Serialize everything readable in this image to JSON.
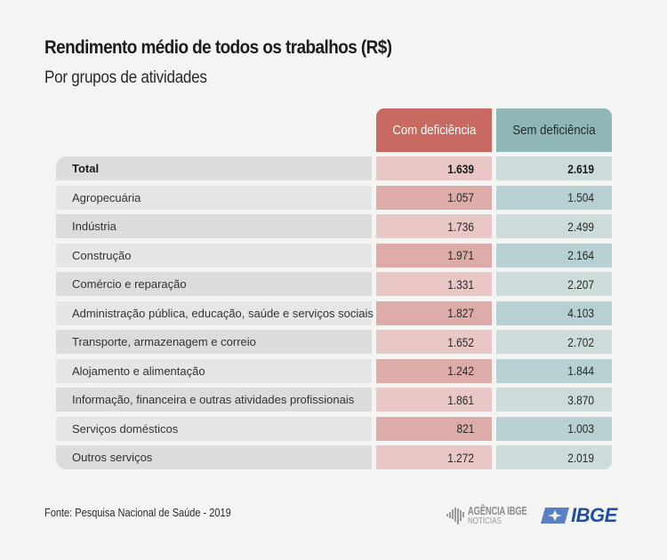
{
  "header": {
    "title": "Rendimento médio de todos os trabalhos (R$)",
    "subtitle": "Por grupos de atividades"
  },
  "table": {
    "columns": [
      "Com deficiência",
      "Sem deficiência"
    ],
    "rows": [
      {
        "label": "Total",
        "com": "1.639",
        "sem": "2.619"
      },
      {
        "label": "Agropecuária",
        "com": "1.057",
        "sem": "1.504"
      },
      {
        "label": "Indústria",
        "com": "1.736",
        "sem": "2.499"
      },
      {
        "label": "Construção",
        "com": "1.971",
        "sem": "2.164"
      },
      {
        "label": "Comércio e reparação",
        "com": "1.331",
        "sem": "2.207"
      },
      {
        "label": "Administração pública, educação, saúde e serviços sociais",
        "com": "1.827",
        "sem": "4.103"
      },
      {
        "label": "Transporte, armazenagem e correio",
        "com": "1.652",
        "sem": "2.702"
      },
      {
        "label": "Alojamento e alimentação",
        "com": "1.242",
        "sem": "1.844"
      },
      {
        "label": "Informação, financeira e outras atividades profissionais",
        "com": "1.861",
        "sem": "3.870"
      },
      {
        "label": "Serviços domésticos",
        "com": "821",
        "sem": "1.003"
      },
      {
        "label": "Outros serviços",
        "com": "1.272",
        "sem": "2.019"
      }
    ],
    "colors": {
      "com_header": "#c86a62",
      "sem_header": "#8fb7b8"
    }
  },
  "footer": {
    "source": "Fonte: Pesquisa Nacional de Saúde - 2019",
    "logo_agencia_line1": "AGÊNCIA IBGE",
    "logo_agencia_line2": "NOTÍCIAS",
    "logo_ibge": "IBGE"
  }
}
